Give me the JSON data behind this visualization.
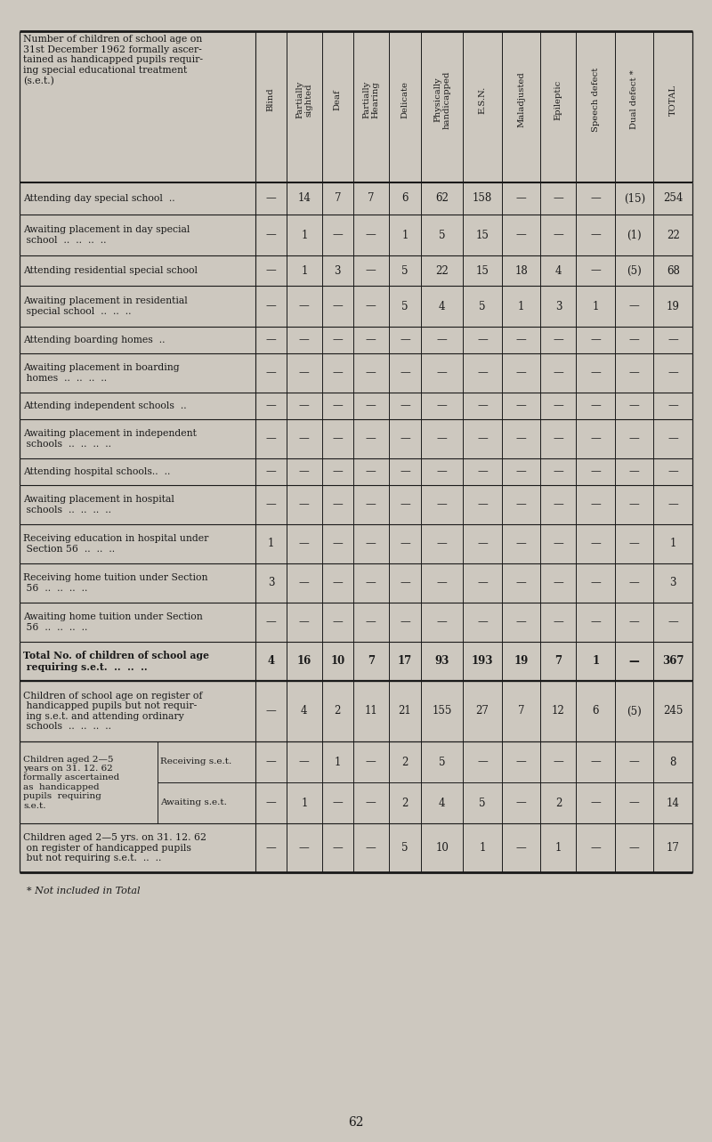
{
  "bg_color": "#cdc8bf",
  "text_color": "#1a1a1a",
  "page_number": "62",
  "footnote": "* Not included in Total",
  "col_headers": [
    "Blind",
    "Partially\nsighted",
    "Deaf",
    "Partially\nHearing",
    "Delicate",
    "Physically\nhandicapped",
    "E.S.N.",
    "Maladjusted",
    "Epileptic",
    "Speech defect",
    "Dual defect *",
    "TOTAL"
  ],
  "header_label": "Number of children of school age on\n31st December 1962 formally ascer-\ntained as handicapped pupils requir-\ning special educational treatment\n(s.e.t.)",
  "row_labels": [
    "Attending day special school  ..",
    "Awaiting placement in day special\n school  ..  ..  ..  ..",
    "Attending residential special school",
    "Awaiting placement in residential\n special school  ..  ..  ..",
    "Attending boarding homes  ..",
    "Awaiting placement in boarding\n homes  ..  ..  ..  ..",
    "Attending independent schools  ..",
    "Awaiting placement in independent\n schools  ..  ..  ..  ..",
    "Attending hospital schools..  ..",
    "Awaiting placement in hospital\n schools  ..  ..  ..  ..",
    "Receiving education in hospital under\n Section 56  ..  ..  ..",
    "Receiving home tuition under Section\n 56  ..  ..  ..  ..",
    "Awaiting home tuition under Section\n 56  ..  ..  ..  ..",
    "Total No. of children of school age\n requiring s.e.t.  ..  ..  ..",
    "Children of school age on register of\n handicapped pupils but not requir-\n ing s.e.t. and attending ordinary\n schools  ..  ..  ..  .."
  ],
  "row_values": [
    [
      "—",
      "14",
      "7",
      "7",
      "6",
      "62",
      "158",
      "—",
      "—",
      "—",
      "(15)",
      "254"
    ],
    [
      "—",
      "1",
      "—",
      "—",
      "1",
      "5",
      "15",
      "—",
      "—",
      "—",
      "(1)",
      "22"
    ],
    [
      "—",
      "1",
      "3",
      "—",
      "5",
      "22",
      "15",
      "18",
      "4",
      "—",
      "(5)",
      "68"
    ],
    [
      "—",
      "—",
      "—",
      "—",
      "5",
      "4",
      "5",
      "1",
      "3",
      "1",
      "—",
      "19"
    ],
    [
      "—",
      "—",
      "—",
      "—",
      "—",
      "—",
      "—",
      "—",
      "—",
      "—",
      "—",
      "—"
    ],
    [
      "—",
      "—",
      "—",
      "—",
      "—",
      "—",
      "—",
      "—",
      "—",
      "—",
      "—",
      "—"
    ],
    [
      "—",
      "—",
      "—",
      "—",
      "—",
      "—",
      "—",
      "—",
      "—",
      "—",
      "—",
      "—"
    ],
    [
      "—",
      "—",
      "—",
      "—",
      "—",
      "—",
      "—",
      "—",
      "—",
      "—",
      "—",
      "—"
    ],
    [
      "—",
      "—",
      "—",
      "—",
      "—",
      "—",
      "—",
      "—",
      "—",
      "—",
      "—",
      "—"
    ],
    [
      "—",
      "—",
      "—",
      "—",
      "—",
      "—",
      "—",
      "—",
      "—",
      "—",
      "—",
      "—"
    ],
    [
      "1",
      "—",
      "—",
      "—",
      "—",
      "—",
      "—",
      "—",
      "—",
      "—",
      "—",
      "1"
    ],
    [
      "3",
      "—",
      "—",
      "—",
      "—",
      "—",
      "—",
      "—",
      "—",
      "—",
      "—",
      "3"
    ],
    [
      "—",
      "—",
      "—",
      "—",
      "—",
      "—",
      "—",
      "—",
      "—",
      "—",
      "—",
      "—"
    ],
    [
      "4",
      "16",
      "10",
      "7",
      "17",
      "93",
      "193",
      "19",
      "7",
      "1",
      "—",
      "367"
    ],
    [
      "—",
      "4",
      "2",
      "11",
      "21",
      "155",
      "27",
      "7",
      "12",
      "6",
      "(5)",
      "245"
    ]
  ],
  "row_bold": [
    false,
    false,
    false,
    false,
    false,
    false,
    false,
    false,
    false,
    false,
    false,
    false,
    false,
    true,
    false
  ],
  "merged_label": "Children aged 2—5\nyears on 31. 12. 62\nformally ascertained\nas  handicapped\npupils  requiring\ns.e.t.",
  "sub_row_labels": [
    "Receiving s.e.t.",
    "Awaiting s.e.t."
  ],
  "sub_row_values": [
    [
      "—",
      "—",
      "1",
      "—",
      "2",
      "5",
      "—",
      "—",
      "—",
      "—",
      "—",
      "8"
    ],
    [
      "—",
      "1",
      "—",
      "—",
      "2",
      "4",
      "5",
      "—",
      "2",
      "—",
      "—",
      "14"
    ]
  ],
  "last_row_label": "Children aged 2—5 yrs. on 31. 12. 62\n on register of handicapped pupils\n but not requiring s.e.t.  ..  ..",
  "last_row_values": [
    "—",
    "—",
    "—",
    "—",
    "5",
    "10",
    "1",
    "—",
    "1",
    "—",
    "—",
    "17"
  ]
}
